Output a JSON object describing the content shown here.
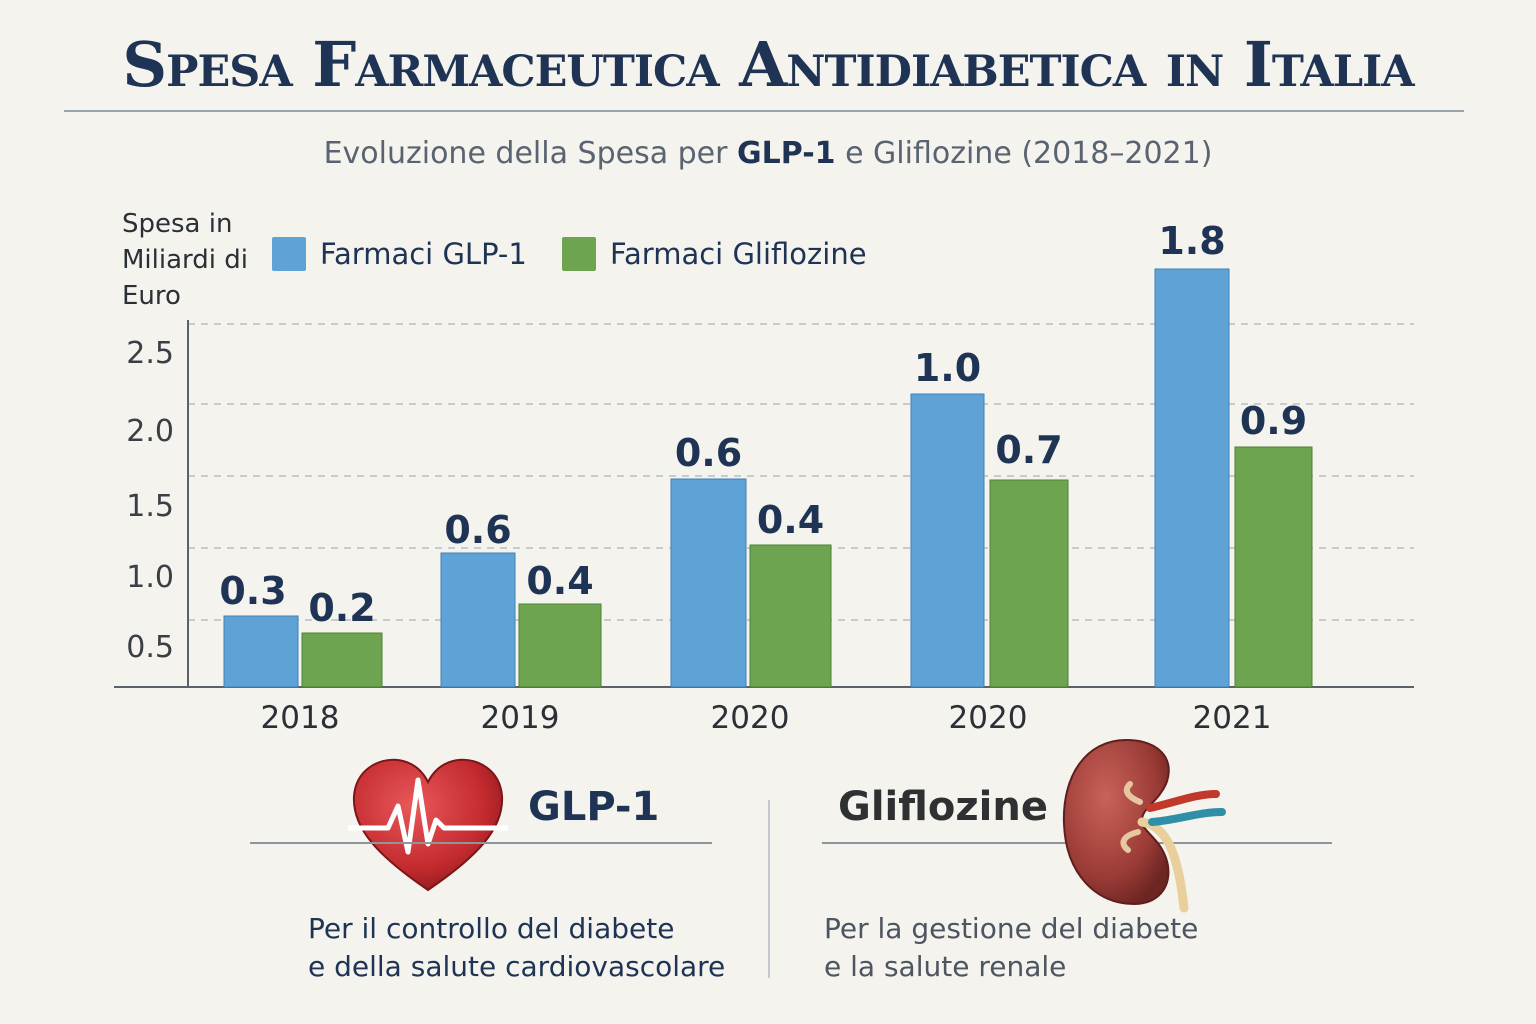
{
  "header": {
    "title": "Spesa Farmaceutica Antidiabetica in Italia",
    "subtitle_pre": "Evoluzione della Spesa per ",
    "subtitle_strong": "GLP-1",
    "subtitle_post": " e Gliflozine (2018–2021)"
  },
  "colors": {
    "glp1": "#5fa3d6",
    "gliflozine": "#6ea450",
    "accent": "#1f3454"
  },
  "chart_data": {
    "type": "bar",
    "ylabel": "Spesa in Miliardi di Euro",
    "categories": [
      "2018",
      "2019",
      "2020",
      "2020",
      "2021"
    ],
    "y_ticks": [
      "0.5",
      "1.0",
      "1.5",
      "2.0",
      "2.5"
    ],
    "ylim": [
      0,
      2.5
    ],
    "grid": true,
    "legend_position": "top-left",
    "series": [
      {
        "name": "Farmaci GLP-1",
        "color": "#5fa3d6",
        "values": [
          0.3,
          0.6,
          0.6,
          1.0,
          1.8
        ],
        "labels": [
          "0.3",
          "0.6",
          "0.6",
          "1.0",
          "1.8"
        ]
      },
      {
        "name": "Farmaci Gliflozine",
        "color": "#6ea450",
        "values": [
          0.2,
          0.4,
          0.4,
          0.7,
          0.9
        ],
        "labels": [
          "0.2",
          "0.4",
          "0.4",
          "0.7",
          "0.9"
        ]
      }
    ]
  },
  "panels": {
    "glp1": {
      "icon": "heart-ecg-icon",
      "title": "GLP-1",
      "desc_line1": "Per il controllo del diabete",
      "desc_line2": "e della salute cardiovascolare"
    },
    "gliflozine": {
      "icon": "kidney-icon",
      "title": "Gliflozine",
      "desc_line1": "Per la gestione del diabete",
      "desc_line2": "e la salute renale"
    }
  }
}
